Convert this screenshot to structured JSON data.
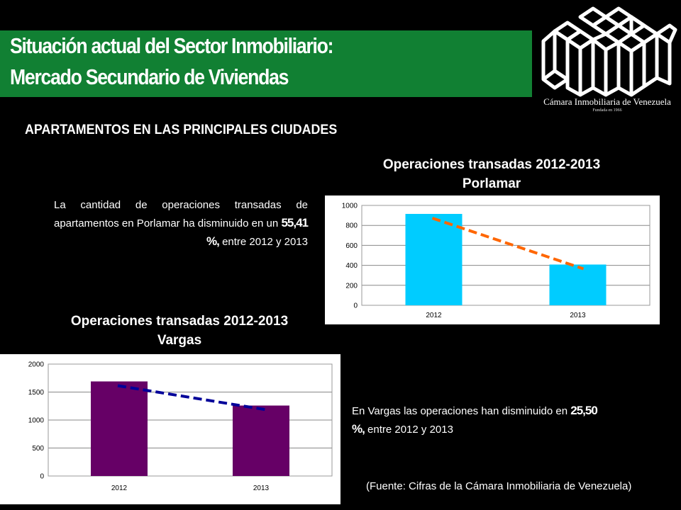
{
  "header": {
    "title_line1": "Situación actual del Sector Inmobiliario:",
    "title_line2": "Mercado Secundario de Viviendas"
  },
  "logo": {
    "name": "Cámara Inmobiliaria de Venezuela",
    "tagline": "Fundada en 1966"
  },
  "subheading": "APARTAMENTOS EN LAS PRINCIPALES CIUDADES",
  "porlamar_text": {
    "before": "La cantidad de operaciones transadas de apartamentos en Porlamar ha disminuido en un",
    "value": "55,41 %,",
    "after": "entre 2012 y 2013"
  },
  "vargas_text": {
    "before": "En Vargas las operaciones han disminuido en",
    "value": "25,50 %,",
    "after": "entre 2012 y 2013"
  },
  "source": "(Fuente: Cifras de la Cámara Inmobiliaria de Venezuela)",
  "chart_data": [
    {
      "type": "bar",
      "title_line1": "Operaciones transadas 2012-2013",
      "title_line2": "Porlamar",
      "categories": [
        "2012",
        "2013"
      ],
      "values": [
        915,
        408
      ],
      "ylim": [
        0,
        1000
      ],
      "yticks": [
        0,
        200,
        400,
        600,
        800,
        1000
      ],
      "bar_color": "#00CCFF",
      "trendline": {
        "style": "dashed",
        "color": "#FF6600"
      },
      "grid": true,
      "legend": "none"
    },
    {
      "type": "bar",
      "title_line1": "Operaciones transadas 2012-2013",
      "title_line2": "Vargas",
      "categories": [
        "2012",
        "2013"
      ],
      "values": [
        1690,
        1259
      ],
      "ylim": [
        0,
        2000
      ],
      "yticks": [
        0,
        500,
        1000,
        1500,
        2000
      ],
      "bar_color": "#660066",
      "trendline": {
        "style": "dashed",
        "color": "#000099"
      },
      "grid": true,
      "legend": "none"
    }
  ]
}
